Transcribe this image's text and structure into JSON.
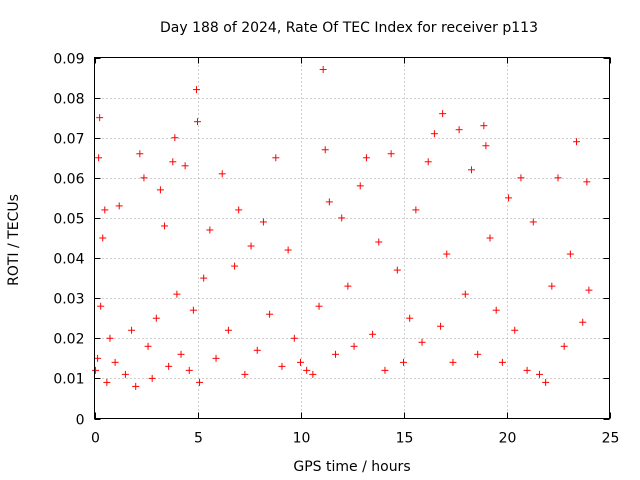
{
  "chart_data": {
    "type": "scatter",
    "title": "Day 188 of 2024, Rate Of TEC Index for receiver p113",
    "xlabel": "GPS time / hours",
    "ylabel": "ROTI / TECUs",
    "xlim": [
      0,
      25
    ],
    "ylim": [
      0,
      0.09
    ],
    "x_ticks": [
      0,
      5,
      10,
      15,
      20,
      25
    ],
    "x_tick_labels": [
      "0",
      "5",
      "10",
      "15",
      "20",
      "25"
    ],
    "y_ticks": [
      0,
      0.01,
      0.02,
      0.03,
      0.04,
      0.05,
      0.06,
      0.07,
      0.08,
      0.09
    ],
    "y_tick_labels": [
      "0",
      "0.01",
      "0.02",
      "0.03",
      "0.04",
      "0.05",
      "0.06",
      "0.07",
      "0.08",
      "0.09"
    ],
    "grid": true,
    "marker": "+",
    "series": [
      {
        "name": "p113",
        "color": "#ff0000",
        "x": [
          0.05,
          0.15,
          0.2,
          0.25,
          0.3,
          0.4,
          0.5,
          0.6,
          0.75,
          1.0,
          1.2,
          1.5,
          1.8,
          2.0,
          2.2,
          2.4,
          2.6,
          2.8,
          3.0,
          3.2,
          3.4,
          3.6,
          3.8,
          3.9,
          4.0,
          4.2,
          4.4,
          4.6,
          4.8,
          4.95,
          5.0,
          5.1,
          5.3,
          5.6,
          5.9,
          6.2,
          6.5,
          6.8,
          7.0,
          7.3,
          7.6,
          7.9,
          8.2,
          8.5,
          8.8,
          9.1,
          9.4,
          9.7,
          10.0,
          10.3,
          10.6,
          10.9,
          11.1,
          11.2,
          11.4,
          11.7,
          12.0,
          12.3,
          12.6,
          12.9,
          13.2,
          13.5,
          13.8,
          14.1,
          14.4,
          14.7,
          15.0,
          15.3,
          15.6,
          15.9,
          16.2,
          16.5,
          16.8,
          16.9,
          17.1,
          17.4,
          17.7,
          18.0,
          18.3,
          18.6,
          18.9,
          19.0,
          19.2,
          19.5,
          19.8,
          20.1,
          20.4,
          20.7,
          21.0,
          21.3,
          21.6,
          21.9,
          22.2,
          22.5,
          22.8,
          23.1,
          23.4,
          23.7,
          23.9,
          24.0
        ],
        "y": [
          0.012,
          0.015,
          0.065,
          0.075,
          0.028,
          0.045,
          0.052,
          0.009,
          0.02,
          0.014,
          0.053,
          0.011,
          0.022,
          0.008,
          0.066,
          0.06,
          0.018,
          0.01,
          0.025,
          0.057,
          0.048,
          0.013,
          0.064,
          0.07,
          0.031,
          0.016,
          0.063,
          0.012,
          0.027,
          0.082,
          0.074,
          0.009,
          0.035,
          0.047,
          0.015,
          0.061,
          0.022,
          0.038,
          0.052,
          0.011,
          0.043,
          0.017,
          0.049,
          0.026,
          0.065,
          0.013,
          0.042,
          0.02,
          0.014,
          0.012,
          0.011,
          0.028,
          0.087,
          0.067,
          0.054,
          0.016,
          0.05,
          0.033,
          0.018,
          0.058,
          0.065,
          0.021,
          0.044,
          0.012,
          0.066,
          0.037,
          0.014,
          0.025,
          0.052,
          0.019,
          0.064,
          0.071,
          0.023,
          0.076,
          0.041,
          0.014,
          0.072,
          0.031,
          0.062,
          0.016,
          0.073,
          0.068,
          0.045,
          0.027,
          0.014,
          0.055,
          0.022,
          0.06,
          0.012,
          0.049,
          0.011,
          0.009,
          0.033,
          0.06,
          0.018,
          0.041,
          0.069,
          0.024,
          0.059,
          0.032
        ]
      }
    ]
  }
}
